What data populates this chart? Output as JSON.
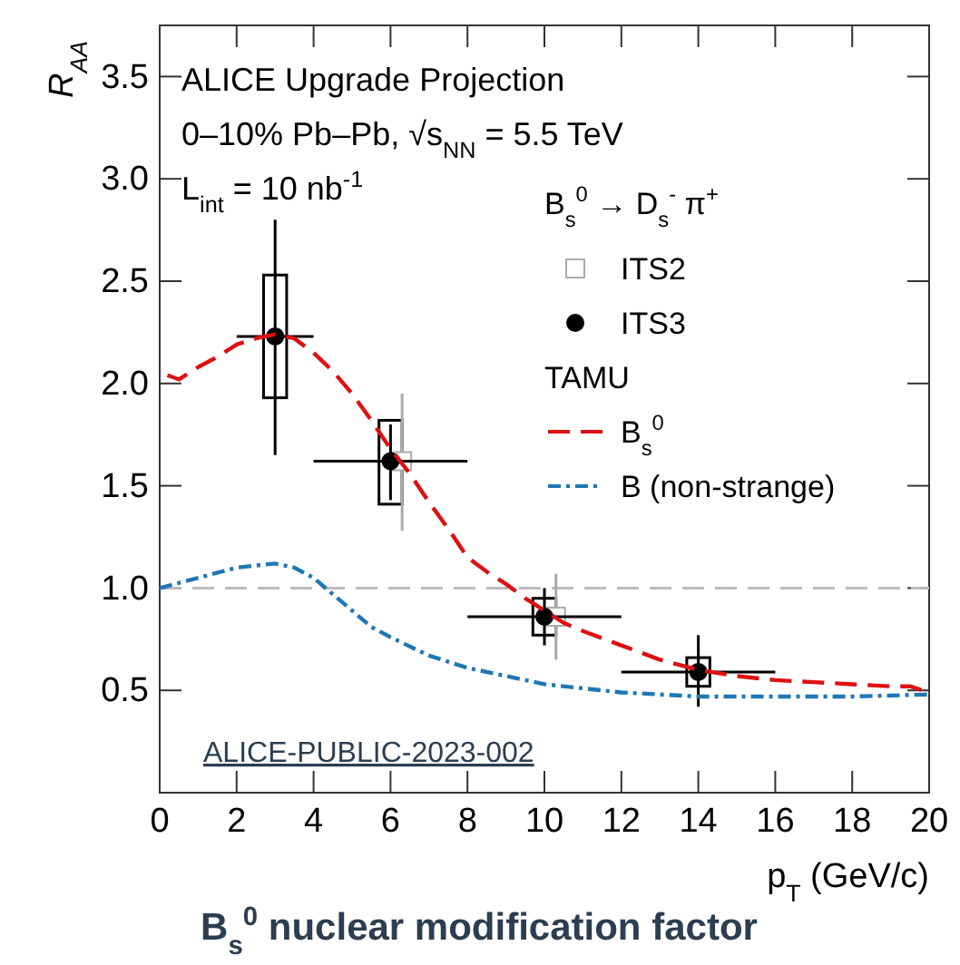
{
  "chart_data": {
    "type": "scatter",
    "title": "B$_{s}$$^{0}$ nuclear modification factor",
    "xlabel": "p$_{T}$ (GeV/c)",
    "ylabel": "R$_{AA}$",
    "legend_title": "B$_{s}$$^{0}$ → D$_{s}$$^{-}$ π$^{+}$",
    "annotations": [
      "ALICE Upgrade Projection",
      "0–10% Pb–Pb, √s$_{NN}$ = 5.5 TeV",
      "L$_{int}$ = 10 nb$^{-1}$",
      "TAMU",
      "ALICE-PUBLIC-2023-002"
    ],
    "xlim": [
      0,
      20
    ],
    "ylim": [
      0,
      3.75
    ],
    "xticks": [
      0,
      2,
      4,
      6,
      8,
      10,
      12,
      14,
      16,
      18,
      20
    ],
    "yticks": [
      {
        "value": 0.5,
        "label": "0.5"
      },
      {
        "value": 1,
        "label": "1.0"
      },
      {
        "value": 1.5,
        "label": "1.5"
      },
      {
        "value": 2,
        "label": "2.0"
      },
      {
        "value": 2.5,
        "label": "2.5"
      },
      {
        "value": 3,
        "label": "3.0"
      },
      {
        "value": 3.5,
        "label": "3.5"
      }
    ],
    "legend": "top right",
    "grid": false,
    "ref_lines": [
      {
        "axis": "y",
        "value": 1.0,
        "color": "#bbbbbb",
        "line_style": "dashed"
      }
    ],
    "series": [
      {
        "type": "bar",
        "color": "#000000",
        "x": [
          3,
          6,
          10,
          14
        ],
        "base": [
          1.93,
          1.41,
          0.77,
          0.52
        ],
        "values": [
          0.6,
          0.41,
          0.18,
          0.14
        ]
      },
      {
        "type": "scatter",
        "name": "ITS2",
        "color": "#aaaaaa",
        "marker": "square",
        "x": [
          6.3,
          10.3
        ],
        "values": [
          1.62,
          0.86
        ],
        "errors": [
          [
            1.28,
            1.95
          ],
          [
            0.65,
            1.07
          ]
        ]
      },
      {
        "name": "ITS3",
        "color": "#000000",
        "marker": "circle",
        "x": [
          3,
          6,
          10,
          14
        ],
        "values": [
          2.23,
          1.62,
          0.86,
          0.59
        ],
        "errors": [
          [
            1.65,
            2.8
          ],
          [
            1.43,
            1.8
          ],
          [
            0.72,
            1.0
          ],
          [
            0.42,
            0.77
          ]
        ],
        "xerrors": [
          [
            2,
            4
          ],
          [
            4,
            8
          ],
          [
            8,
            12
          ],
          [
            12,
            16
          ]
        ]
      },
      {
        "type": "line",
        "name": "B$_{s}$$^{0}$",
        "color": "#dd1111",
        "line_style": "dashed",
        "x": [
          0.2,
          0.5,
          1,
          1.5,
          2,
          2.5,
          3,
          3.5,
          4,
          4.5,
          5,
          5.5,
          6,
          6.5,
          7,
          7.5,
          8,
          8.5,
          9,
          9.5,
          10,
          10.5,
          11,
          12,
          13,
          14,
          15,
          16,
          17,
          18,
          19,
          19.5,
          20
        ],
        "values": [
          2.04,
          2.02,
          2.08,
          2.13,
          2.19,
          2.22,
          2.24,
          2.22,
          2.15,
          2.06,
          1.95,
          1.82,
          1.68,
          1.56,
          1.42,
          1.29,
          1.15,
          1.08,
          1.02,
          0.95,
          0.89,
          0.83,
          0.79,
          0.72,
          0.65,
          0.6,
          0.57,
          0.55,
          0.54,
          0.53,
          0.52,
          0.52,
          0.49
        ]
      },
      {
        "type": "line",
        "name": "B (non-strange)",
        "color": "#1f77b4",
        "line_style": "dashdot",
        "x": [
          0,
          1,
          2,
          3,
          3.5,
          4,
          4.5,
          5,
          5.5,
          6,
          7,
          8,
          9,
          10,
          11,
          12,
          13,
          14,
          16,
          18,
          20
        ],
        "values": [
          1.0,
          1.05,
          1.1,
          1.12,
          1.1,
          1.05,
          0.97,
          0.89,
          0.81,
          0.76,
          0.67,
          0.61,
          0.57,
          0.53,
          0.51,
          0.49,
          0.48,
          0.47,
          0.47,
          0.47,
          0.48
        ]
      }
    ]
  }
}
